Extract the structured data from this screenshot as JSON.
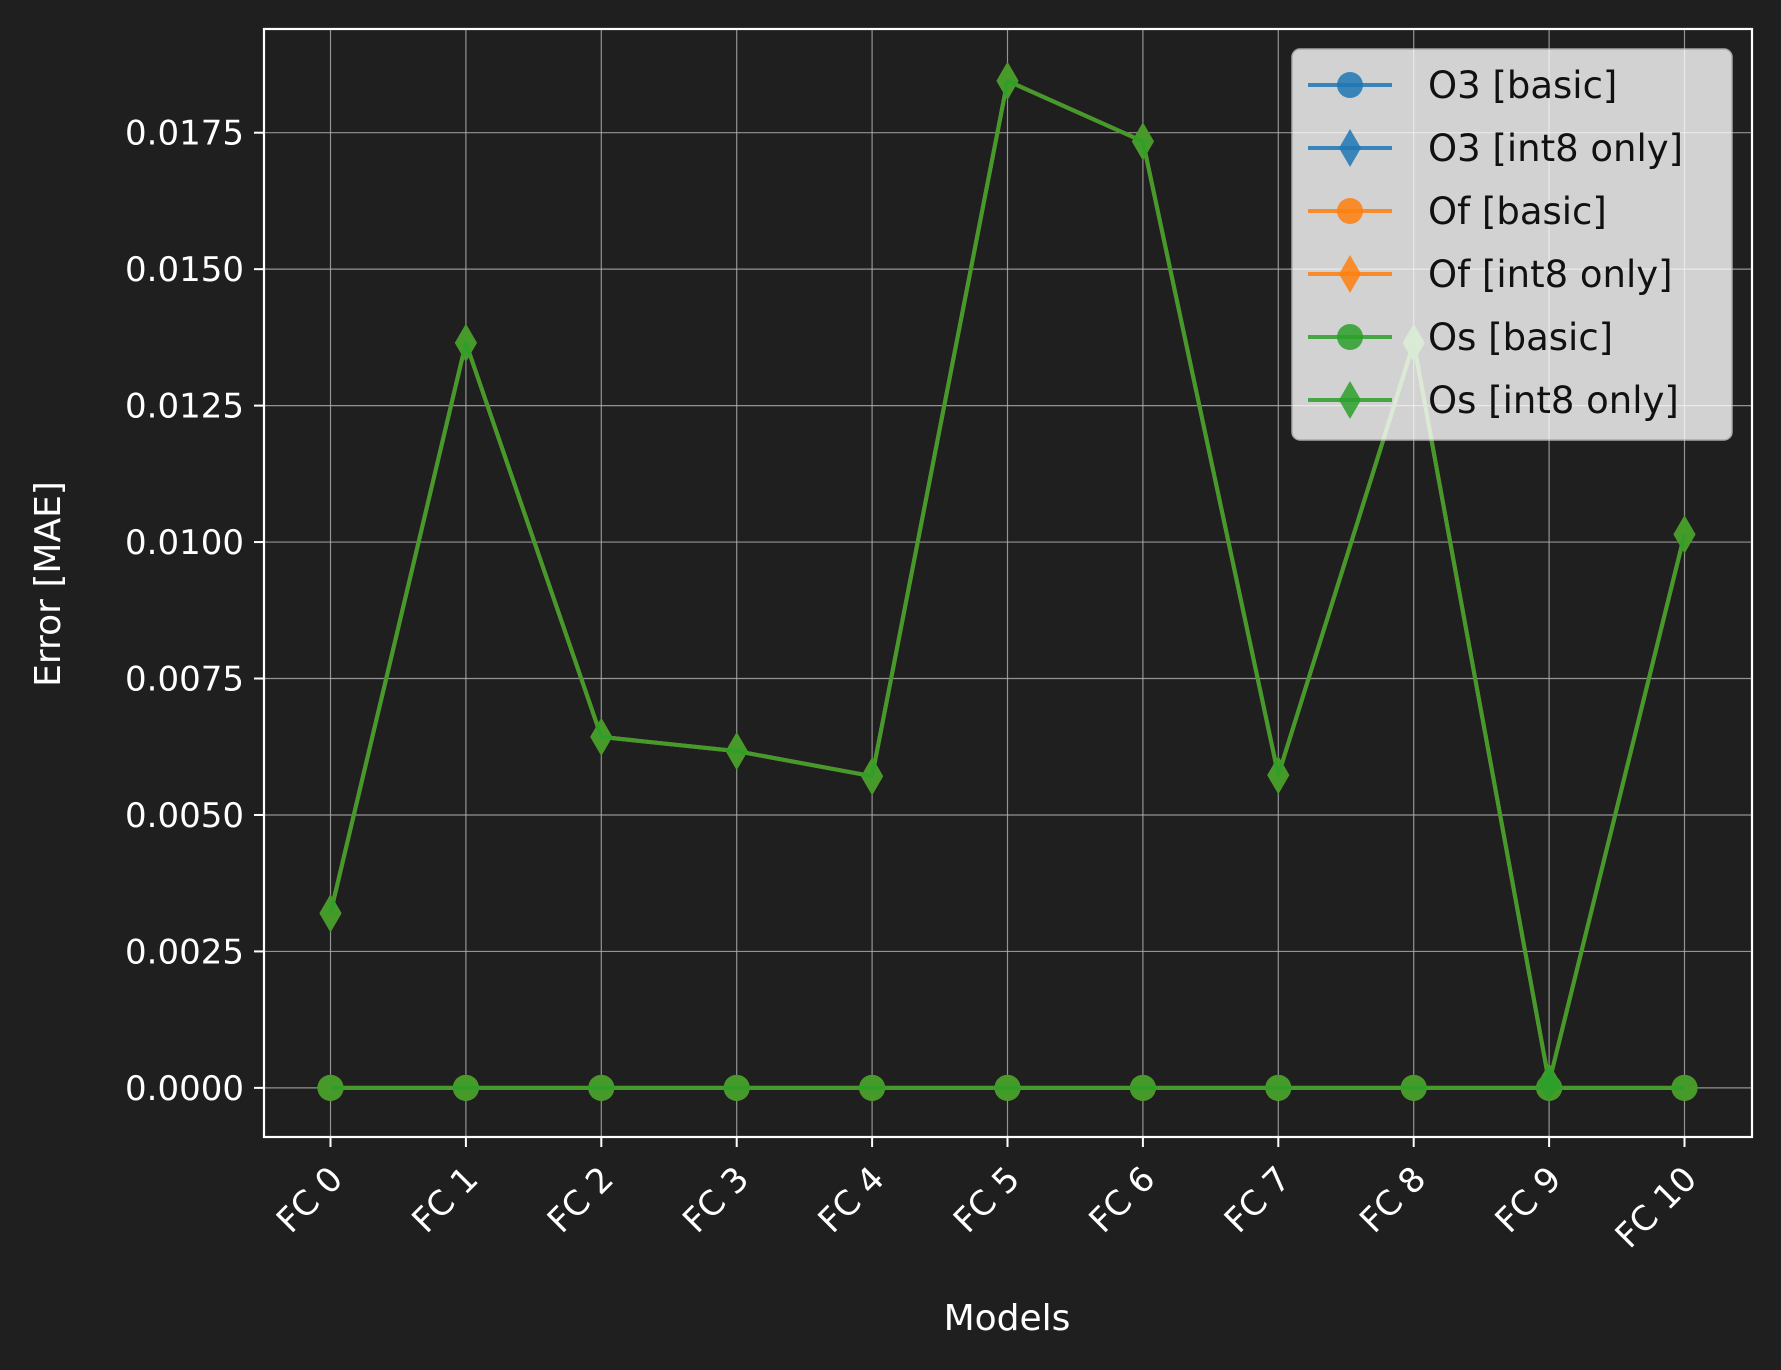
{
  "chart_data": {
    "type": "line",
    "title": "",
    "xlabel": "Models",
    "ylabel": "Error [MAE]",
    "categories": [
      "FC 0",
      "FC 1",
      "FC 2",
      "FC 3",
      "FC 4",
      "FC 5",
      "FC 6",
      "FC 7",
      "FC 8",
      "FC 9",
      "FC 10"
    ],
    "ylim": [
      -0.0009,
      0.0194
    ],
    "yticks": [
      "0.0000",
      "0.0025",
      "0.0050",
      "0.0075",
      "0.0100",
      "0.0125",
      "0.0150",
      "0.0175"
    ],
    "grid": true,
    "legend_position": "top-right",
    "series": [
      {
        "name": "O3 [basic]",
        "color": "#1f77b4",
        "marker": "circle",
        "values": [
          0,
          0,
          0,
          0,
          0,
          0,
          0,
          0,
          0,
          0,
          0
        ]
      },
      {
        "name": "O3 [int8 only]",
        "color": "#1f77b4",
        "marker": "diamond",
        "values": [
          0.0032,
          0.01365,
          0.00643,
          0.00617,
          0.00571,
          0.01845,
          0.01734,
          0.00573,
          0.01365,
          0.0001,
          0.01014
        ]
      },
      {
        "name": "Of [basic]",
        "color": "#ff7f0e",
        "marker": "circle",
        "values": [
          0,
          0,
          0,
          0,
          0,
          0,
          0,
          0,
          0,
          0,
          0
        ]
      },
      {
        "name": "Of [int8 only]",
        "color": "#ff7f0e",
        "marker": "diamond",
        "values": [
          0.0032,
          0.01365,
          0.00643,
          0.00617,
          0.00571,
          0.01845,
          0.01734,
          0.00573,
          0.01365,
          0.0001,
          0.01014
        ]
      },
      {
        "name": "Os [basic]",
        "color": "#2ca02c",
        "marker": "circle",
        "values": [
          0,
          0,
          0,
          0,
          0,
          0,
          0,
          0,
          0,
          0,
          0
        ]
      },
      {
        "name": "Os [int8 only]",
        "color": "#2ca02c",
        "marker": "diamond",
        "values": [
          0.0032,
          0.01365,
          0.00643,
          0.00617,
          0.00571,
          0.01845,
          0.01734,
          0.00573,
          0.01365,
          0.0001,
          0.01014
        ]
      }
    ]
  }
}
